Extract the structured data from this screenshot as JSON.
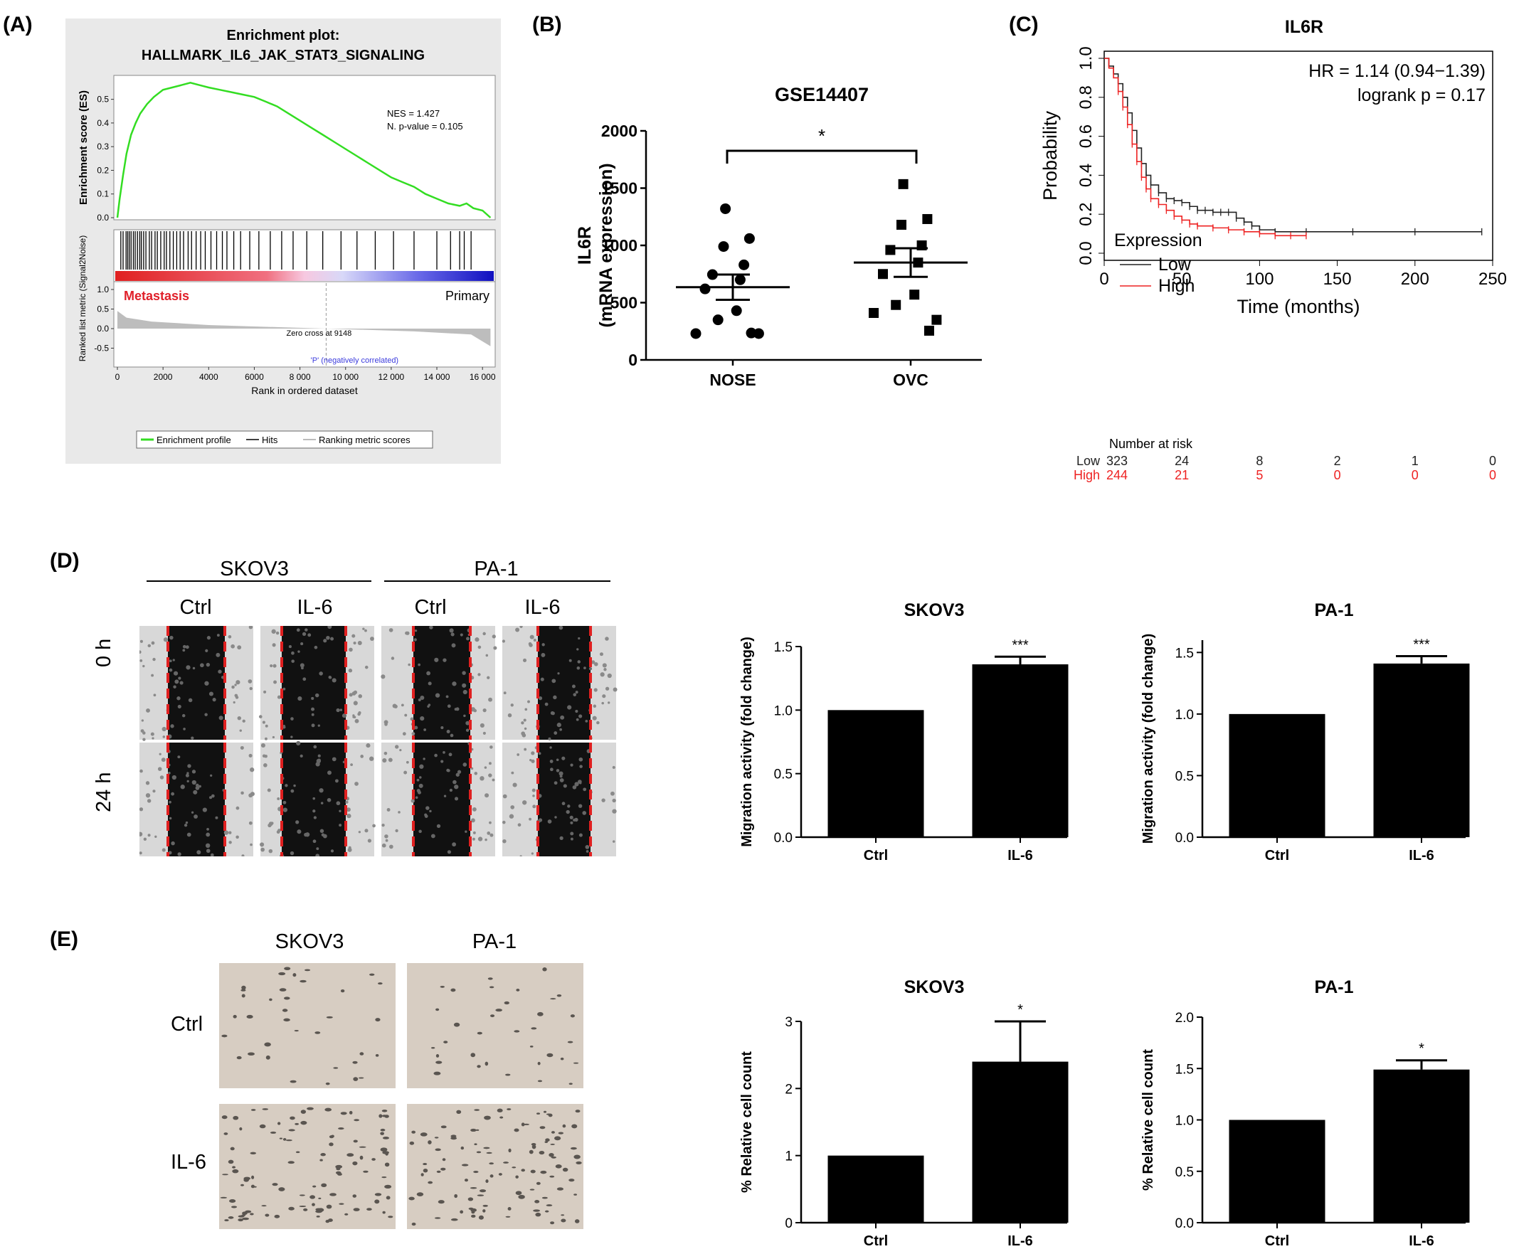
{
  "panel_labels": [
    "(A)",
    "(B)",
    "(C)",
    "(D)",
    "(E)"
  ],
  "scratch": {
    "cells": [
      "SKOV3",
      "PA-1"
    ],
    "conditions": [
      "Ctrl",
      "IL-6",
      "Ctrl",
      "IL-6"
    ],
    "times": [
      "0 h",
      "24 h"
    ]
  },
  "transwell": {
    "cells": [
      "SKOV3",
      "PA-1"
    ],
    "conditions": [
      "Ctrl",
      "IL-6"
    ]
  },
  "colors": {
    "gsea_curve": "#33dd22",
    "low": "#222222",
    "high": "#ee2222"
  },
  "chart_data": [
    {
      "id": "A",
      "type": "line",
      "title": "Enrichment plot:",
      "subtitle": "HALLMARK_IL6_JAK_STAT3_SIGNALING",
      "ylabel": "Enrichment score (ES)",
      "ylabel2": "Ranked list metric (Signal2Noise)",
      "xlabel": "Rank in ordered dataset",
      "xlim": [
        0,
        16400
      ],
      "ylim": [
        0,
        0.6
      ],
      "yticks": [
        "0.0",
        "0.1",
        "0.2",
        "0.3",
        "0.4",
        "0.5"
      ],
      "yticks2": [
        "1.0",
        "0.5",
        "0.0",
        "-0.5"
      ],
      "xticks": [
        "0",
        "2000",
        "4000",
        "6000",
        "8000",
        "10000",
        "12000",
        "14000",
        "16000"
      ],
      "xtick_labels": [
        "0",
        "2000",
        "4000",
        "6000",
        "8 000",
        "10 000",
        "12 000",
        "14 000",
        "16 000"
      ],
      "annotations": [
        "NES = 1.427",
        "N. p-value = 0.105"
      ],
      "label_left": "Metastasis",
      "label_right": "Primary",
      "zero_cross": "Zero cross at 9148",
      "neg_label": "'P' (negatively correlated)",
      "legend": [
        "Enrichment profile",
        "Hits",
        "Ranking metric scores"
      ],
      "es_curve": {
        "x": [
          0,
          100,
          250,
          400,
          600,
          800,
          1000,
          1300,
          1600,
          2000,
          2400,
          2800,
          3200,
          3600,
          4000,
          4500,
          5000,
          5500,
          6000,
          6500,
          7000,
          7500,
          8000,
          8500,
          9000,
          9500,
          10000,
          10500,
          11000,
          11500,
          12000,
          12500,
          13000,
          13500,
          14000,
          14500,
          15000,
          15300,
          15600,
          16000,
          16350
        ],
        "y": [
          0,
          0.08,
          0.18,
          0.27,
          0.35,
          0.4,
          0.44,
          0.48,
          0.51,
          0.54,
          0.55,
          0.56,
          0.57,
          0.56,
          0.55,
          0.54,
          0.53,
          0.52,
          0.51,
          0.49,
          0.47,
          0.44,
          0.41,
          0.38,
          0.35,
          0.32,
          0.29,
          0.26,
          0.23,
          0.2,
          0.17,
          0.15,
          0.13,
          0.1,
          0.08,
          0.06,
          0.05,
          0.06,
          0.04,
          0.03,
          0.0
        ]
      },
      "hits": [
        150,
        250,
        380,
        450,
        520,
        600,
        700,
        780,
        880,
        980,
        1050,
        1150,
        1250,
        1400,
        1500,
        1650,
        1750,
        1900,
        2050,
        2150,
        2300,
        2450,
        2600,
        2750,
        2900,
        3100,
        3250,
        3450,
        3650,
        3850,
        4100,
        4350,
        4600,
        4800,
        5100,
        5400,
        5800,
        6200,
        6700,
        7200,
        7700,
        8300,
        9000,
        9800,
        10500,
        11300,
        12100,
        13000,
        14000,
        14600,
        15000,
        15200,
        15500
      ]
    },
    {
      "id": "B",
      "type": "scatter",
      "title": "GSE14407",
      "ylabel": "IL6R",
      "ylabel2": "(mRNA expression)",
      "categories": [
        "NOSE",
        "OVC"
      ],
      "ylim": [
        0,
        2000
      ],
      "yticks": [
        0,
        500,
        1000,
        1500,
        2000
      ],
      "significance": "*",
      "series": [
        {
          "name": "NOSE",
          "mean": 635,
          "sem": 110,
          "values": [
            1320,
            1060,
            990,
            830,
            745,
            700,
            620,
            430,
            350,
            230,
            235,
            230
          ]
        },
        {
          "name": "OVC",
          "mean": 850,
          "sem": 125,
          "values": [
            1535,
            1230,
            1180,
            1000,
            960,
            850,
            750,
            570,
            480,
            410,
            255,
            350
          ]
        }
      ]
    },
    {
      "id": "C",
      "type": "line",
      "title": "IL6R",
      "ylabel": "Probability",
      "xlabel": "Time (months)",
      "xlim": [
        0,
        250
      ],
      "ylim": [
        0,
        1.0
      ],
      "xticks": [
        0,
        50,
        100,
        150,
        200,
        250
      ],
      "yticks": [
        "0.0",
        "0.2",
        "0.4",
        "0.6",
        "0.8",
        "1.0"
      ],
      "annotation_hr": "HR = 1.14 (0.94−1.39)",
      "annotation_p": "logrank p = 0.17",
      "legend_title": "Expression",
      "series": [
        {
          "name": "Low",
          "x": [
            0,
            3,
            6,
            9,
            12,
            15,
            18,
            21,
            24,
            27,
            30,
            35,
            40,
            45,
            50,
            55,
            60,
            65,
            70,
            75,
            80,
            85,
            90,
            95,
            100,
            110,
            130,
            160,
            200,
            243
          ],
          "y": [
            1.0,
            0.96,
            0.92,
            0.87,
            0.8,
            0.72,
            0.63,
            0.54,
            0.46,
            0.4,
            0.35,
            0.31,
            0.28,
            0.27,
            0.26,
            0.24,
            0.22,
            0.22,
            0.21,
            0.21,
            0.21,
            0.18,
            0.16,
            0.14,
            0.12,
            0.11,
            0.11,
            0.11,
            0.11,
            0.11
          ]
        },
        {
          "name": "High",
          "x": [
            0,
            3,
            6,
            9,
            12,
            15,
            18,
            21,
            24,
            27,
            30,
            35,
            40,
            45,
            50,
            55,
            60,
            70,
            80,
            90,
            100,
            110,
            120,
            130
          ],
          "y": [
            1.0,
            0.95,
            0.9,
            0.83,
            0.75,
            0.66,
            0.56,
            0.47,
            0.39,
            0.33,
            0.28,
            0.25,
            0.22,
            0.19,
            0.17,
            0.15,
            0.14,
            0.13,
            0.12,
            0.11,
            0.1,
            0.09,
            0.09,
            0.09
          ]
        }
      ],
      "risk_table": {
        "title": "Number at risk",
        "times": [
          0,
          50,
          100,
          150,
          200,
          250
        ],
        "rows": [
          {
            "name": "Low",
            "values": [
              "323",
              "24",
              "8",
              "2",
              "1",
              "0"
            ]
          },
          {
            "name": "High",
            "values": [
              "244",
              "21",
              "5",
              "0",
              "0",
              "0"
            ]
          }
        ]
      }
    },
    {
      "id": "D-SKOV3",
      "type": "bar",
      "title": "SKOV3",
      "ylabel": "Migration activity (fold change)",
      "categories": [
        "Ctrl",
        "IL-6"
      ],
      "values": [
        1.0,
        1.36
      ],
      "errors": [
        0,
        0.06
      ],
      "significance": [
        "",
        "***"
      ],
      "ylim": [
        0,
        1.5
      ],
      "yticks": [
        "0.0",
        "0.5",
        "1.0",
        "1.5"
      ]
    },
    {
      "id": "D-PA1",
      "type": "bar",
      "title": "PA-1",
      "ylabel": "Migration activity (fold change)",
      "categories": [
        "Ctrl",
        "IL-6"
      ],
      "values": [
        1.0,
        1.41
      ],
      "errors": [
        0,
        0.06
      ],
      "significance": [
        "",
        "***"
      ],
      "ylim": [
        0,
        1.6
      ],
      "yticks": [
        "0.0",
        "0.5",
        "1.0",
        "1.5"
      ]
    },
    {
      "id": "E-SKOV3",
      "type": "bar",
      "title": "SKOV3",
      "ylabel": "% Relative cell count",
      "categories": [
        "Ctrl",
        "IL-6"
      ],
      "values": [
        1.0,
        2.4
      ],
      "errors": [
        0,
        0.6
      ],
      "significance": [
        "",
        "*"
      ],
      "ylim": [
        0,
        3
      ],
      "yticks": [
        "0",
        "1",
        "2",
        "3"
      ]
    },
    {
      "id": "E-PA1",
      "type": "bar",
      "title": "PA-1",
      "ylabel": "% Relative cell count",
      "categories": [
        "Ctrl",
        "IL-6"
      ],
      "values": [
        1.0,
        1.49
      ],
      "errors": [
        0,
        0.09
      ],
      "significance": [
        "",
        "*"
      ],
      "ylim": [
        0,
        2.0
      ],
      "yticks": [
        "0.0",
        "0.5",
        "1.0",
        "1.5",
        "2.0"
      ]
    }
  ]
}
